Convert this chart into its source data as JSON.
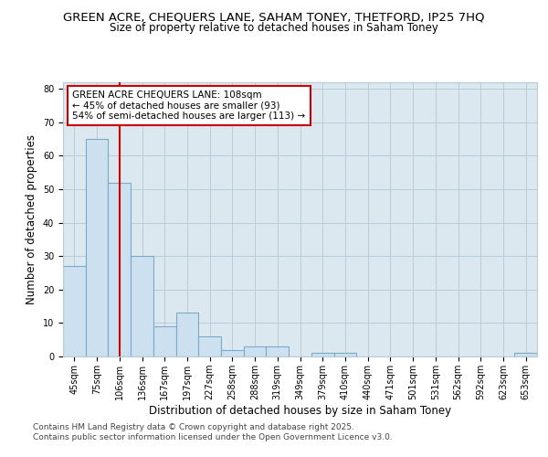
{
  "title1": "GREEN ACRE, CHEQUERS LANE, SAHAM TONEY, THETFORD, IP25 7HQ",
  "title2": "Size of property relative to detached houses in Saham Toney",
  "xlabel": "Distribution of detached houses by size in Saham Toney",
  "ylabel": "Number of detached properties",
  "categories": [
    "45sqm",
    "75sqm",
    "106sqm",
    "136sqm",
    "167sqm",
    "197sqm",
    "227sqm",
    "258sqm",
    "288sqm",
    "319sqm",
    "349sqm",
    "379sqm",
    "410sqm",
    "440sqm",
    "471sqm",
    "501sqm",
    "531sqm",
    "562sqm",
    "592sqm",
    "623sqm",
    "653sqm"
  ],
  "values": [
    27,
    65,
    52,
    30,
    9,
    13,
    6,
    2,
    3,
    3,
    0,
    1,
    1,
    0,
    0,
    0,
    0,
    0,
    0,
    0,
    1
  ],
  "bar_color": "#cce0f0",
  "bar_edge_color": "#7aaac8",
  "vline_x": 2,
  "vline_color": "#cc0000",
  "ylim": [
    0,
    82
  ],
  "yticks": [
    0,
    10,
    20,
    30,
    40,
    50,
    60,
    70,
    80
  ],
  "annotation_text": "GREEN ACRE CHEQUERS LANE: 108sqm\n← 45% of detached houses are smaller (93)\n54% of semi-detached houses are larger (113) →",
  "annotation_box_color": "#ffffff",
  "annotation_border_color": "#cc0000",
  "footer1": "Contains HM Land Registry data © Crown copyright and database right 2025.",
  "footer2": "Contains public sector information licensed under the Open Government Licence v3.0.",
  "bg_color": "#ffffff",
  "plot_bg_color": "#dce8f0",
  "grid_color": "#b8ccd8",
  "title_fontsize": 9.5,
  "subtitle_fontsize": 8.5,
  "tick_fontsize": 7,
  "label_fontsize": 8.5,
  "footer_fontsize": 6.5,
  "annotation_fontsize": 7.5
}
